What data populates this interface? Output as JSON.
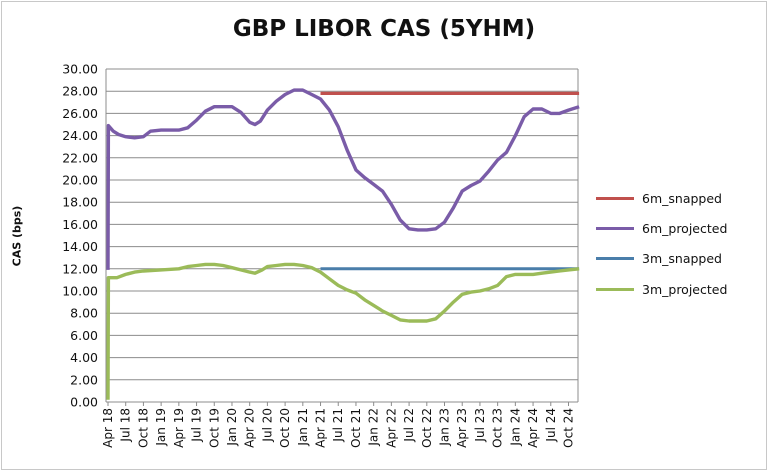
{
  "chart_data": {
    "type": "line",
    "title": "GBP LIBOR CAS (5YHM)",
    "ylabel": "CAS (bps)",
    "xlabel": "",
    "ylim": [
      0,
      30
    ],
    "yticks": [
      "0.00",
      "2.00",
      "4.00",
      "6.00",
      "8.00",
      "10.00",
      "12.00",
      "14.00",
      "16.00",
      "18.00",
      "20.00",
      "22.00",
      "24.00",
      "26.00",
      "28.00",
      "30.00"
    ],
    "x_tick_labels": [
      "Apr 18",
      "Jul 18",
      "Oct 18",
      "Jan 19",
      "Apr 19",
      "Jul 19",
      "Oct 19",
      "Jan 20",
      "Apr 20",
      "Jul 20",
      "Oct 20",
      "Jan 21",
      "Apr 21",
      "Jul 21",
      "Oct 21",
      "Jan 22",
      "Apr 22",
      "Jul 22",
      "Oct 22",
      "Jan 23",
      "Apr 23",
      "Jul 23",
      "Oct 23",
      "Jan 24",
      "Apr 24",
      "Jul 24",
      "Oct 24"
    ],
    "grid": "horizontal",
    "legend_position": "right",
    "series": [
      {
        "name": "6m_snapped",
        "color": "#c0504d",
        "points": [
          [
            12,
            27.8
          ],
          [
            26.6,
            27.8
          ]
        ]
      },
      {
        "name": "6m_projected",
        "color": "#7a5ca8",
        "points": [
          [
            0,
            11.9
          ],
          [
            0.02,
            24.9
          ],
          [
            0.3,
            24.4
          ],
          [
            0.6,
            24.1
          ],
          [
            1,
            23.9
          ],
          [
            1.5,
            23.8
          ],
          [
            2,
            23.9
          ],
          [
            2.4,
            24.4
          ],
          [
            3,
            24.5
          ],
          [
            3.5,
            24.5
          ],
          [
            4,
            24.5
          ],
          [
            4.5,
            24.7
          ],
          [
            5,
            25.4
          ],
          [
            5.5,
            26.2
          ],
          [
            6,
            26.6
          ],
          [
            6.5,
            26.6
          ],
          [
            7,
            26.6
          ],
          [
            7.5,
            26.1
          ],
          [
            8,
            25.2
          ],
          [
            8.3,
            25.0
          ],
          [
            8.6,
            25.3
          ],
          [
            9,
            26.3
          ],
          [
            9.5,
            27.1
          ],
          [
            10,
            27.7
          ],
          [
            10.5,
            28.1
          ],
          [
            11,
            28.1
          ],
          [
            11.5,
            27.7
          ],
          [
            12,
            27.3
          ],
          [
            12.5,
            26.3
          ],
          [
            13,
            24.8
          ],
          [
            13.5,
            22.7
          ],
          [
            14,
            20.9
          ],
          [
            14.5,
            20.2
          ],
          [
            15,
            19.6
          ],
          [
            15.5,
            19.0
          ],
          [
            16,
            17.8
          ],
          [
            16.5,
            16.4
          ],
          [
            17,
            15.6
          ],
          [
            17.5,
            15.5
          ],
          [
            18,
            15.5
          ],
          [
            18.5,
            15.6
          ],
          [
            19,
            16.2
          ],
          [
            19.5,
            17.5
          ],
          [
            20,
            19.0
          ],
          [
            20.5,
            19.5
          ],
          [
            21,
            19.9
          ],
          [
            21.5,
            20.8
          ],
          [
            22,
            21.8
          ],
          [
            22.5,
            22.5
          ],
          [
            23,
            24.0
          ],
          [
            23.5,
            25.7
          ],
          [
            24,
            26.4
          ],
          [
            24.5,
            26.4
          ],
          [
            25,
            26.0
          ],
          [
            25.5,
            26.0
          ],
          [
            26,
            26.3
          ],
          [
            26.6,
            26.6
          ]
        ]
      },
      {
        "name": "3m_snapped",
        "color": "#4a7eaa",
        "points": [
          [
            12,
            12.0
          ],
          [
            26.6,
            12.0
          ]
        ]
      },
      {
        "name": "3m_projected",
        "color": "#9bbb59",
        "points": [
          [
            0,
            0.2
          ],
          [
            0.02,
            11.2
          ],
          [
            0.5,
            11.2
          ],
          [
            1,
            11.5
          ],
          [
            1.5,
            11.7
          ],
          [
            2,
            11.8
          ],
          [
            3,
            11.9
          ],
          [
            4,
            12.0
          ],
          [
            4.5,
            12.2
          ],
          [
            5,
            12.3
          ],
          [
            5.5,
            12.4
          ],
          [
            6,
            12.4
          ],
          [
            6.5,
            12.3
          ],
          [
            7,
            12.1
          ],
          [
            7.5,
            11.9
          ],
          [
            8,
            11.7
          ],
          [
            8.3,
            11.6
          ],
          [
            8.7,
            11.9
          ],
          [
            9,
            12.2
          ],
          [
            9.5,
            12.3
          ],
          [
            10,
            12.4
          ],
          [
            10.5,
            12.4
          ],
          [
            11,
            12.3
          ],
          [
            11.5,
            12.1
          ],
          [
            12,
            11.7
          ],
          [
            12.5,
            11.1
          ],
          [
            13,
            10.5
          ],
          [
            13.5,
            10.1
          ],
          [
            14,
            9.8
          ],
          [
            14.5,
            9.2
          ],
          [
            15,
            8.7
          ],
          [
            15.5,
            8.2
          ],
          [
            16,
            7.8
          ],
          [
            16.5,
            7.4
          ],
          [
            17,
            7.3
          ],
          [
            17.5,
            7.3
          ],
          [
            18,
            7.3
          ],
          [
            18.5,
            7.5
          ],
          [
            19,
            8.2
          ],
          [
            19.5,
            9.0
          ],
          [
            20,
            9.7
          ],
          [
            20.5,
            9.9
          ],
          [
            21,
            10.0
          ],
          [
            21.5,
            10.2
          ],
          [
            22,
            10.5
          ],
          [
            22.5,
            11.3
          ],
          [
            23,
            11.5
          ],
          [
            23.5,
            11.5
          ],
          [
            24,
            11.5
          ],
          [
            24.5,
            11.6
          ],
          [
            25,
            11.7
          ],
          [
            25.5,
            11.8
          ],
          [
            26,
            11.9
          ],
          [
            26.6,
            12.0
          ]
        ]
      }
    ]
  }
}
